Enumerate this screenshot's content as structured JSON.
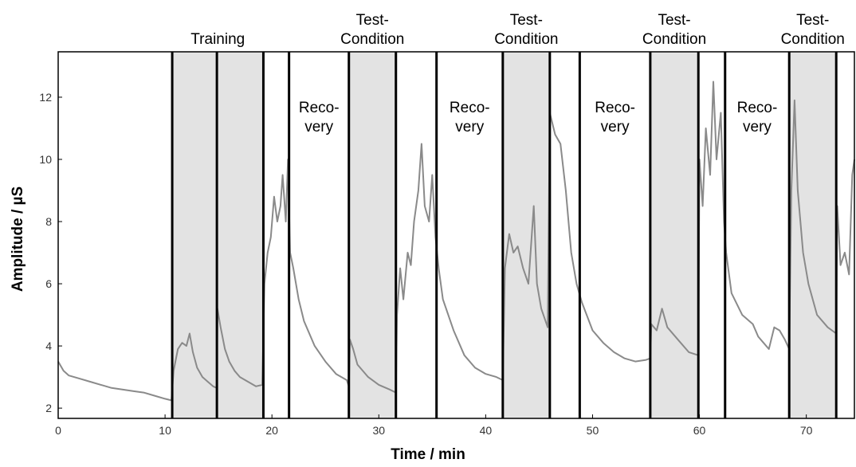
{
  "chart_data": {
    "type": "line",
    "x_label": "Time / min",
    "y_label": "Amplitude / µS",
    "xlim": [
      0,
      74.5
    ],
    "ylim": [
      1.67,
      13.46
    ],
    "xticks": [
      0,
      10,
      20,
      30,
      40,
      50,
      60,
      70
    ],
    "yticks": [
      2,
      4,
      6,
      8,
      10,
      12
    ],
    "line_color": "#8a8a8a",
    "shade_color": "#e3e3e3",
    "phase_boundaries": [
      10.67,
      14.85,
      19.2,
      21.6,
      27.2,
      31.6,
      35.4,
      41.6,
      46.0,
      48.8,
      55.4,
      59.9,
      62.4,
      68.4,
      72.8
    ],
    "shaded_regions": [
      [
        10.67,
        14.85
      ],
      [
        14.85,
        19.2
      ],
      [
        27.2,
        31.6
      ],
      [
        41.6,
        46.0
      ],
      [
        55.4,
        59.9
      ],
      [
        68.4,
        72.8
      ]
    ],
    "top_labels": [
      "Training",
      "Test-\nCondition",
      "Test-\nCondition",
      "Test-\nCondition",
      "Test-\nCondition"
    ],
    "inner_labels": [
      "Reco-\nvery",
      "Reco-\nvery",
      "Reco-\nvery",
      "Reco-\nvery"
    ],
    "x": [
      0,
      0.5,
      1,
      2,
      3,
      4,
      5,
      6,
      7,
      8,
      9,
      10,
      10.6,
      10.8,
      11.2,
      11.6,
      12,
      12.3,
      12.6,
      13,
      13.5,
      14,
      14.5,
      14.85,
      14.9,
      15.2,
      15.6,
      16,
      16.5,
      17,
      17.5,
      18,
      18.5,
      19.1,
      19.3,
      19.6,
      19.9,
      20.2,
      20.5,
      20.8,
      21,
      21.3,
      21.5,
      21.7,
      22,
      22.5,
      23,
      24,
      25,
      26,
      27,
      27.2,
      27.3,
      27.6,
      28,
      29,
      30,
      31,
      31.6,
      31.7,
      32,
      32.3,
      32.7,
      33,
      33.3,
      33.7,
      34,
      34.3,
      34.7,
      35,
      35.3,
      35.6,
      36,
      37,
      38,
      39,
      40,
      41,
      41.6,
      41.8,
      42.2,
      42.6,
      43,
      43.5,
      44,
      44.5,
      44.8,
      45.2,
      45.8,
      46,
      46.5,
      47,
      47.5,
      48,
      48.5,
      49,
      50,
      51,
      52,
      53,
      54,
      55,
      55.4,
      55.5,
      56,
      56.5,
      57,
      58,
      59,
      59.9,
      60,
      60.3,
      60.6,
      61,
      61.3,
      61.6,
      62,
      62.3,
      62.5,
      63,
      64,
      65,
      65.5,
      66,
      66.5,
      67,
      67.5,
      68,
      68.4,
      68.6,
      68.9,
      69.2,
      69.7,
      70.2,
      71,
      72,
      72.8,
      72.9,
      73.2,
      73.6,
      74,
      74.3,
      74.5
    ],
    "values": [
      3.5,
      3.2,
      3.05,
      2.95,
      2.85,
      2.75,
      2.65,
      2.6,
      2.55,
      2.5,
      2.4,
      2.3,
      2.25,
      3.2,
      3.9,
      4.1,
      4.0,
      4.4,
      3.8,
      3.3,
      3.0,
      2.85,
      2.7,
      2.65,
      5.2,
      4.6,
      3.9,
      3.5,
      3.2,
      3.0,
      2.9,
      2.8,
      2.7,
      2.75,
      6.0,
      7.0,
      7.5,
      8.8,
      8.0,
      8.5,
      9.5,
      8.0,
      10.0,
      7.0,
      6.5,
      5.5,
      4.8,
      4.0,
      3.5,
      3.1,
      2.9,
      2.7,
      4.2,
      3.9,
      3.4,
      3.0,
      2.75,
      2.6,
      2.5,
      5.0,
      6.5,
      5.5,
      7.0,
      6.6,
      8.0,
      9.0,
      10.5,
      8.5,
      8.0,
      9.5,
      7.5,
      6.5,
      5.5,
      4.5,
      3.7,
      3.3,
      3.1,
      3.0,
      2.9,
      6.5,
      7.6,
      7.0,
      7.2,
      6.5,
      6.0,
      8.5,
      6.0,
      5.2,
      4.6,
      11.5,
      10.8,
      10.5,
      9.0,
      7.0,
      6.0,
      5.4,
      4.5,
      4.1,
      3.8,
      3.6,
      3.5,
      3.55,
      3.6,
      4.7,
      4.5,
      5.2,
      4.6,
      4.2,
      3.8,
      3.7,
      10.0,
      8.5,
      11.0,
      9.5,
      12.5,
      10.0,
      11.5,
      8.0,
      7.0,
      5.7,
      5.0,
      4.7,
      4.3,
      4.1,
      3.9,
      4.6,
      4.5,
      4.2,
      3.9,
      9.0,
      11.9,
      9.0,
      7.0,
      6.0,
      5.0,
      4.6,
      4.4,
      8.5,
      6.6,
      7.0,
      6.3,
      9.5,
      10.0
    ]
  }
}
